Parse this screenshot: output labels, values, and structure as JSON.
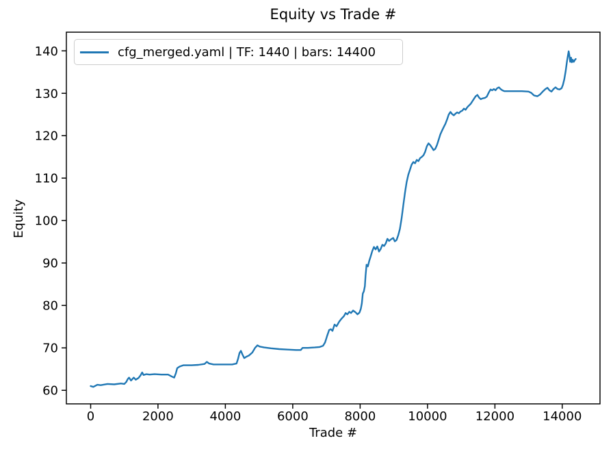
{
  "chart_data": {
    "type": "line",
    "title": "Equity vs Trade #",
    "xlabel": "Trade #",
    "ylabel": "Equity",
    "grid": false,
    "legend_position": "upper left",
    "xlim": [
      -720,
      15120
    ],
    "ylim": [
      56.8,
      144.4
    ],
    "xticks": [
      0,
      2000,
      4000,
      6000,
      8000,
      10000,
      12000,
      14000
    ],
    "yticks": [
      60,
      70,
      80,
      90,
      100,
      110,
      120,
      130,
      140
    ],
    "line_color": "#1f77b4",
    "series": [
      {
        "name": "cfg_merged.yaml | TF: 1440 | bars: 14400",
        "color": "#1f77b4",
        "points": [
          [
            0,
            61.0
          ],
          [
            80,
            60.8
          ],
          [
            200,
            61.3
          ],
          [
            300,
            61.2
          ],
          [
            500,
            61.5
          ],
          [
            700,
            61.4
          ],
          [
            900,
            61.6
          ],
          [
            1000,
            61.5
          ],
          [
            1060,
            62.0
          ],
          [
            1100,
            62.6
          ],
          [
            1140,
            63.0
          ],
          [
            1200,
            62.3
          ],
          [
            1280,
            63.0
          ],
          [
            1340,
            62.5
          ],
          [
            1420,
            62.9
          ],
          [
            1480,
            63.5
          ],
          [
            1530,
            64.2
          ],
          [
            1570,
            63.6
          ],
          [
            1650,
            63.8
          ],
          [
            1750,
            63.7
          ],
          [
            1900,
            63.8
          ],
          [
            2100,
            63.7
          ],
          [
            2300,
            63.7
          ],
          [
            2420,
            63.2
          ],
          [
            2480,
            63.0
          ],
          [
            2530,
            64.0
          ],
          [
            2570,
            65.2
          ],
          [
            2640,
            65.6
          ],
          [
            2750,
            65.9
          ],
          [
            3000,
            65.9
          ],
          [
            3200,
            66.0
          ],
          [
            3380,
            66.2
          ],
          [
            3450,
            66.7
          ],
          [
            3520,
            66.3
          ],
          [
            3650,
            66.1
          ],
          [
            3900,
            66.1
          ],
          [
            4200,
            66.1
          ],
          [
            4330,
            66.3
          ],
          [
            4380,
            67.5
          ],
          [
            4420,
            68.8
          ],
          [
            4460,
            69.3
          ],
          [
            4510,
            68.4
          ],
          [
            4560,
            67.6
          ],
          [
            4620,
            67.9
          ],
          [
            4700,
            68.2
          ],
          [
            4800,
            68.9
          ],
          [
            4880,
            70.0
          ],
          [
            4950,
            70.6
          ],
          [
            5020,
            70.3
          ],
          [
            5150,
            70.1
          ],
          [
            5350,
            69.9
          ],
          [
            5600,
            69.7
          ],
          [
            5850,
            69.6
          ],
          [
            6100,
            69.5
          ],
          [
            6240,
            69.5
          ],
          [
            6290,
            70.0
          ],
          [
            6450,
            70.0
          ],
          [
            6650,
            70.1
          ],
          [
            6800,
            70.2
          ],
          [
            6900,
            70.5
          ],
          [
            6960,
            71.3
          ],
          [
            7020,
            72.8
          ],
          [
            7080,
            74.2
          ],
          [
            7130,
            74.4
          ],
          [
            7180,
            74.0
          ],
          [
            7240,
            75.5
          ],
          [
            7300,
            75.1
          ],
          [
            7380,
            76.2
          ],
          [
            7450,
            76.9
          ],
          [
            7520,
            77.5
          ],
          [
            7570,
            78.2
          ],
          [
            7620,
            77.9
          ],
          [
            7680,
            78.5
          ],
          [
            7730,
            78.2
          ],
          [
            7790,
            78.8
          ],
          [
            7860,
            78.4
          ],
          [
            7920,
            77.9
          ],
          [
            7980,
            78.3
          ],
          [
            8020,
            79.2
          ],
          [
            8050,
            80.5
          ],
          [
            8080,
            82.8
          ],
          [
            8110,
            83.3
          ],
          [
            8140,
            84.5
          ],
          [
            8160,
            87.0
          ],
          [
            8190,
            89.6
          ],
          [
            8230,
            89.2
          ],
          [
            8270,
            90.5
          ],
          [
            8310,
            91.5
          ],
          [
            8360,
            92.8
          ],
          [
            8410,
            93.8
          ],
          [
            8460,
            93.2
          ],
          [
            8510,
            93.9
          ],
          [
            8560,
            92.7
          ],
          [
            8610,
            93.3
          ],
          [
            8660,
            94.3
          ],
          [
            8710,
            94.0
          ],
          [
            8760,
            94.6
          ],
          [
            8810,
            95.7
          ],
          [
            8860,
            95.2
          ],
          [
            8920,
            95.6
          ],
          [
            8980,
            95.9
          ],
          [
            9030,
            95.1
          ],
          [
            9080,
            95.4
          ],
          [
            9130,
            96.5
          ],
          [
            9180,
            98.0
          ],
          [
            9230,
            100.5
          ],
          [
            9280,
            103.5
          ],
          [
            9330,
            106.5
          ],
          [
            9380,
            109.0
          ],
          [
            9430,
            110.8
          ],
          [
            9480,
            112.0
          ],
          [
            9530,
            113.2
          ],
          [
            9580,
            113.8
          ],
          [
            9630,
            113.5
          ],
          [
            9680,
            114.3
          ],
          [
            9730,
            114.0
          ],
          [
            9780,
            114.7
          ],
          [
            9830,
            115.0
          ],
          [
            9880,
            115.4
          ],
          [
            9930,
            116.2
          ],
          [
            9980,
            117.5
          ],
          [
            10030,
            118.2
          ],
          [
            10080,
            117.8
          ],
          [
            10130,
            117.2
          ],
          [
            10180,
            116.6
          ],
          [
            10230,
            116.9
          ],
          [
            10280,
            117.8
          ],
          [
            10330,
            119.0
          ],
          [
            10380,
            120.3
          ],
          [
            10430,
            121.2
          ],
          [
            10480,
            122.0
          ],
          [
            10530,
            122.8
          ],
          [
            10580,
            123.8
          ],
          [
            10630,
            125.0
          ],
          [
            10680,
            125.6
          ],
          [
            10730,
            125.1
          ],
          [
            10780,
            124.8
          ],
          [
            10830,
            125.2
          ],
          [
            10880,
            125.5
          ],
          [
            10930,
            125.3
          ],
          [
            10980,
            125.7
          ],
          [
            11030,
            125.9
          ],
          [
            11080,
            126.4
          ],
          [
            11130,
            126.1
          ],
          [
            11180,
            126.7
          ],
          [
            11230,
            127.1
          ],
          [
            11280,
            127.5
          ],
          [
            11330,
            128.1
          ],
          [
            11380,
            128.7
          ],
          [
            11430,
            129.3
          ],
          [
            11480,
            129.6
          ],
          [
            11530,
            129.0
          ],
          [
            11580,
            128.6
          ],
          [
            11640,
            128.8
          ],
          [
            11700,
            128.9
          ],
          [
            11760,
            129.2
          ],
          [
            11820,
            130.2
          ],
          [
            11870,
            130.9
          ],
          [
            11920,
            130.7
          ],
          [
            11970,
            131.0
          ],
          [
            12020,
            130.7
          ],
          [
            12070,
            131.2
          ],
          [
            12120,
            131.4
          ],
          [
            12170,
            131.0
          ],
          [
            12220,
            130.7
          ],
          [
            12280,
            130.5
          ],
          [
            12400,
            130.5
          ],
          [
            12600,
            130.5
          ],
          [
            12800,
            130.5
          ],
          [
            13000,
            130.4
          ],
          [
            13080,
            130.1
          ],
          [
            13160,
            129.5
          ],
          [
            13260,
            129.3
          ],
          [
            13340,
            129.7
          ],
          [
            13420,
            130.4
          ],
          [
            13500,
            131.0
          ],
          [
            13560,
            131.3
          ],
          [
            13620,
            130.7
          ],
          [
            13680,
            130.4
          ],
          [
            13740,
            131.0
          ],
          [
            13800,
            131.4
          ],
          [
            13860,
            131.0
          ],
          [
            13920,
            130.9
          ],
          [
            13980,
            131.2
          ],
          [
            14020,
            132.0
          ],
          [
            14060,
            133.3
          ],
          [
            14100,
            135.2
          ],
          [
            14140,
            137.5
          ],
          [
            14170,
            139.0
          ],
          [
            14190,
            139.9
          ],
          [
            14210,
            139.0
          ],
          [
            14235,
            137.4
          ],
          [
            14260,
            138.4
          ],
          [
            14285,
            137.3
          ],
          [
            14310,
            137.9
          ],
          [
            14340,
            137.4
          ],
          [
            14370,
            137.8
          ],
          [
            14400,
            138.1
          ]
        ]
      }
    ]
  }
}
